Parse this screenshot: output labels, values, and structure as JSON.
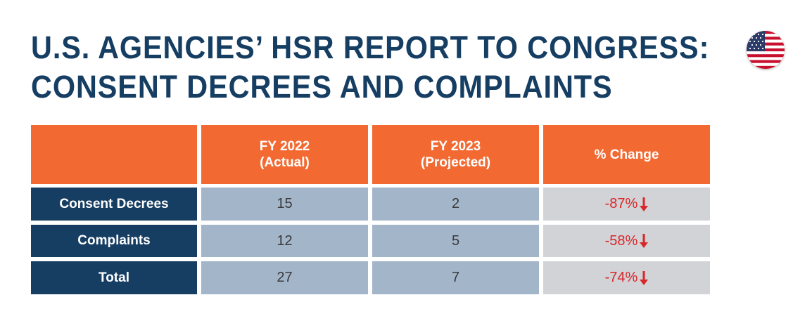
{
  "title": {
    "line1": "U.S. AGENCIES’ HSR REPORT TO CONGRESS:",
    "line2": "CONSENT DECREES AND COMPLAINTS"
  },
  "flag_icon": "us-flag-icon",
  "colors": {
    "title": "#163e63",
    "header": "#f26a32",
    "row_label": "#163e63",
    "value_cell": "#a3b5c9",
    "change_cell": "#d1d3d6",
    "change_text": "#d9262a"
  },
  "chart_data": {
    "type": "table",
    "title": "U.S. AGENCIES’ HSR REPORT TO CONGRESS: CONSENT DECREES AND COMPLAINTS",
    "columns": [
      {
        "line1": "",
        "line2": ""
      },
      {
        "line1": "FY 2022",
        "line2": "(Actual)"
      },
      {
        "line1": "FY 2023",
        "line2": "(Projected)"
      },
      {
        "line1": "% Change",
        "line2": ""
      }
    ],
    "rows": [
      {
        "label": "Consent Decrees",
        "fy2022": "15",
        "fy2023": "2",
        "change": "-87%",
        "direction": "down"
      },
      {
        "label": "Complaints",
        "fy2022": "12",
        "fy2023": "5",
        "change": "-58%",
        "direction": "down"
      },
      {
        "label": "Total",
        "fy2022": "27",
        "fy2023": "7",
        "change": "-74%",
        "direction": "down"
      }
    ]
  }
}
